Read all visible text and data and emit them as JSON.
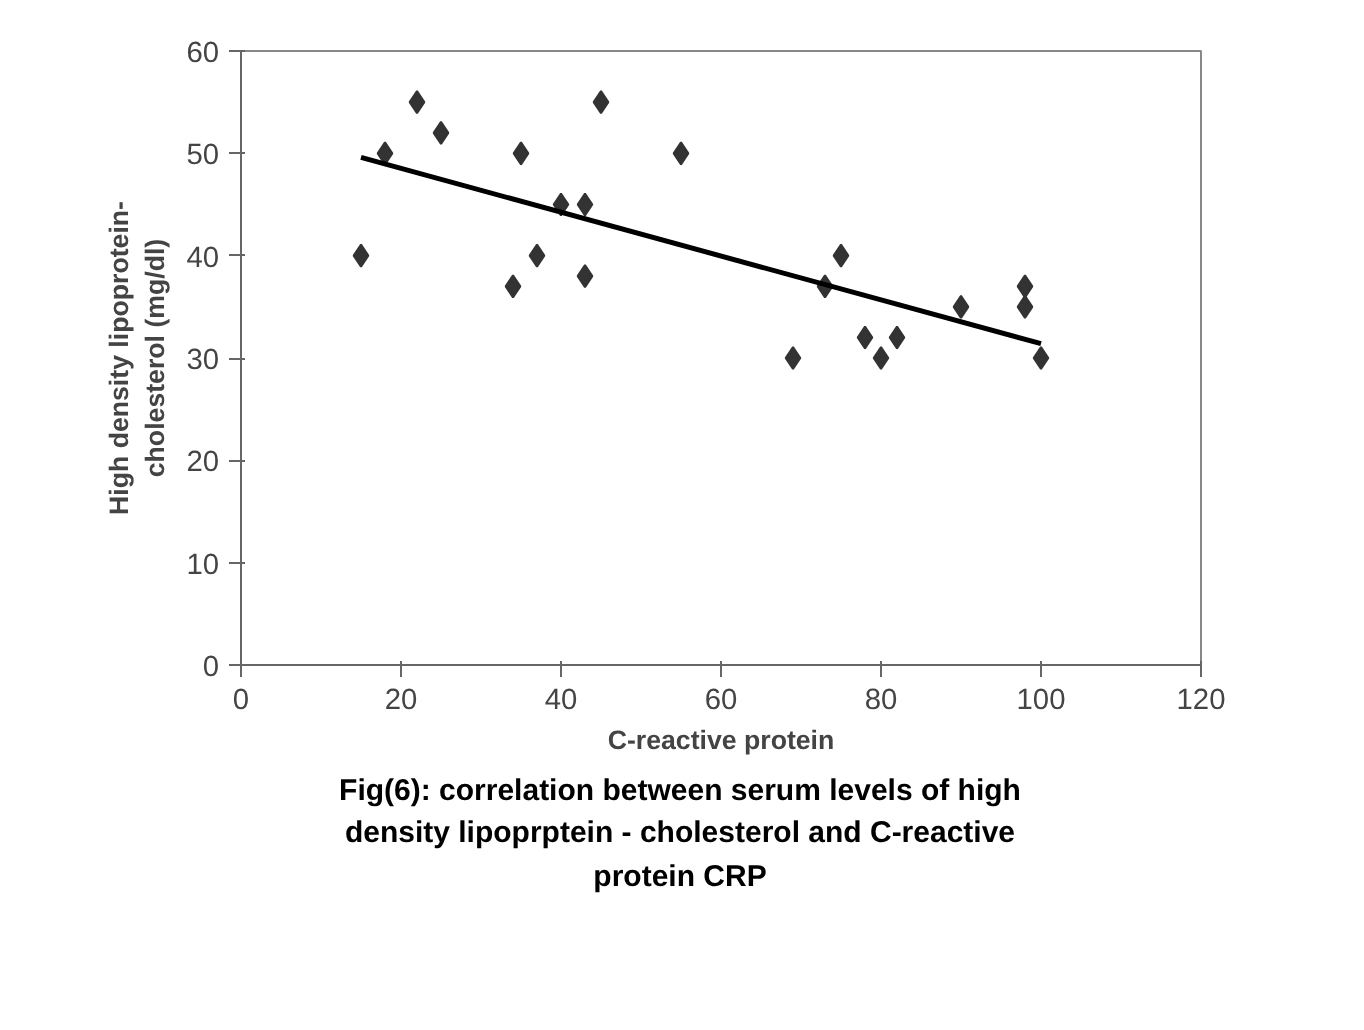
{
  "chart_data": {
    "type": "scatter",
    "xlabel": "C-reactive protein",
    "ylabel": "High density lipoprotein-\ncholesterol (mg/dl)",
    "annotations": [
      "Fig(6): correlation between serum levels of high\ndensity lipoprptein - cholesterol and C-reactive\nprotein CRP"
    ],
    "series": [
      {
        "color": "#333333",
        "marker": "diamond",
        "x": [
          15,
          18,
          22,
          25,
          34,
          35,
          37,
          40,
          43,
          43,
          45,
          55,
          69,
          73,
          75,
          78,
          80,
          82,
          90,
          98,
          98,
          100
        ],
        "values": [
          40,
          50,
          55,
          52,
          37,
          50,
          40,
          45,
          45,
          38,
          55,
          50,
          30,
          37,
          40,
          32,
          30,
          32,
          35,
          37,
          35,
          30
        ]
      },
      {
        "type": "line",
        "color": "#000000",
        "x": [
          15,
          100
        ],
        "values": [
          49.6,
          31.4
        ]
      }
    ],
    "xlim": [
      0,
      120
    ],
    "xticks": [
      0,
      20,
      40,
      60,
      80,
      100,
      120
    ],
    "ylim": [
      0,
      60
    ],
    "yticks": [
      0,
      10,
      20,
      30,
      40,
      50,
      60
    ],
    "grid": false
  }
}
